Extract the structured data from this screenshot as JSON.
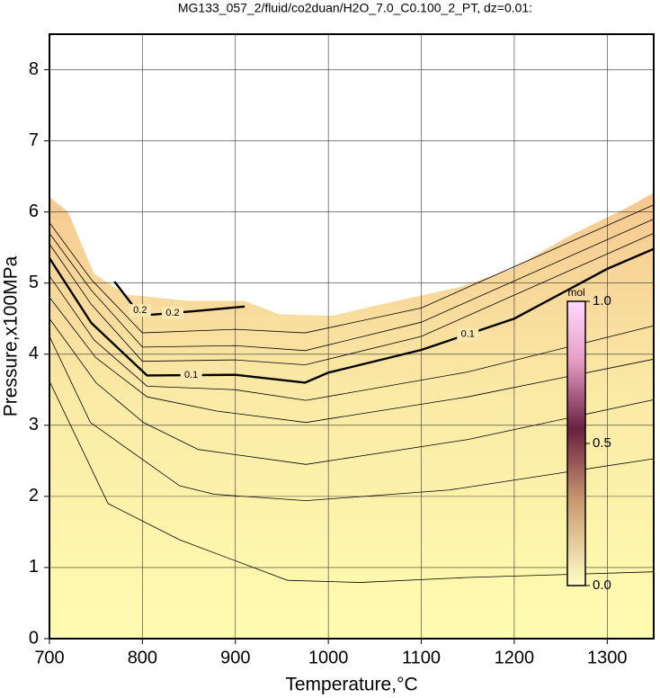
{
  "chart_data": {
    "type": "contour",
    "title": "MG133_057_2/fluid/co2duan/H2O_7.0_C0.100_2_PT, dz=0.01:",
    "x_label": "Temperature,°C",
    "y_label": "Pressure,x100MPa",
    "xlim": [
      700,
      1350
    ],
    "ylim": [
      0,
      8.5
    ],
    "xticks": [
      700,
      800,
      900,
      1000,
      1100,
      1200,
      1300
    ],
    "yticks": [
      0,
      1,
      2,
      3,
      4,
      5,
      6,
      7,
      8
    ],
    "grid": true,
    "domain_boundary": {
      "x": [
        700,
        720,
        748,
        782,
        850,
        910,
        947,
        1005,
        1053,
        1140,
        1198,
        1256,
        1324,
        1350
      ],
      "y": [
        6.21,
        6.0,
        5.13,
        4.84,
        4.75,
        4.75,
        4.56,
        4.54,
        4.69,
        4.94,
        5.2,
        5.64,
        6.08,
        6.27
      ]
    },
    "contours": [
      {
        "level": 0.1,
        "x": [
          700,
          745,
          805,
          900,
          975,
          1000,
          1100,
          1200,
          1300,
          1350
        ],
        "y": [
          5.35,
          4.44,
          3.7,
          3.71,
          3.6,
          3.74,
          4.06,
          4.5,
          5.2,
          5.48
        ]
      },
      {
        "level": 0.2,
        "x": [
          770,
          790,
          805,
          860,
          910
        ],
        "y": [
          5.02,
          4.68,
          4.55,
          4.61,
          4.67
        ]
      },
      {
        "x": [
          700,
          763,
          840,
          956,
          1034,
          1150,
          1350
        ],
        "y": [
          3.62,
          1.9,
          1.39,
          0.82,
          0.79,
          0.86,
          0.94
        ]
      },
      {
        "x": [
          700,
          744,
          840,
          877,
          976,
          1130,
          1350
        ],
        "y": [
          4.25,
          3.04,
          2.15,
          2.03,
          1.94,
          2.09,
          2.53
        ]
      },
      {
        "x": [
          700,
          750,
          801,
          860,
          976,
          1150,
          1350
        ],
        "y": [
          4.5,
          3.6,
          3.04,
          2.66,
          2.45,
          2.8,
          3.36
        ]
      },
      {
        "x": [
          700,
          750,
          805,
          880,
          976,
          1150,
          1350
        ],
        "y": [
          4.8,
          3.95,
          3.4,
          3.2,
          3.04,
          3.4,
          3.93
        ]
      },
      {
        "x": [
          700,
          748,
          805,
          900,
          976,
          1150,
          1350
        ],
        "y": [
          5.1,
          4.2,
          3.55,
          3.5,
          3.35,
          3.75,
          4.4
        ]
      },
      {
        "x": [
          700,
          745,
          800,
          900,
          975,
          1100,
          1350
        ],
        "y": [
          5.55,
          4.7,
          3.9,
          3.92,
          3.85,
          4.25,
          5.7
        ]
      },
      {
        "x": [
          700,
          745,
          800,
          900,
          975,
          1100,
          1350
        ],
        "y": [
          5.7,
          4.9,
          4.1,
          4.12,
          4.05,
          4.45,
          5.9
        ]
      },
      {
        "x": [
          700,
          745,
          800,
          900,
          975,
          1100,
          1350
        ],
        "y": [
          5.85,
          5.05,
          4.3,
          4.35,
          4.3,
          4.65,
          6.1
        ]
      }
    ],
    "colorbar": {
      "label": "mol",
      "lim": [
        0,
        1
      ],
      "ticks": [
        {
          "value": 0,
          "label": "0.0"
        },
        {
          "value": 0.5,
          "label": "0.5"
        },
        {
          "value": 1,
          "label": "1.0"
        }
      ]
    }
  }
}
